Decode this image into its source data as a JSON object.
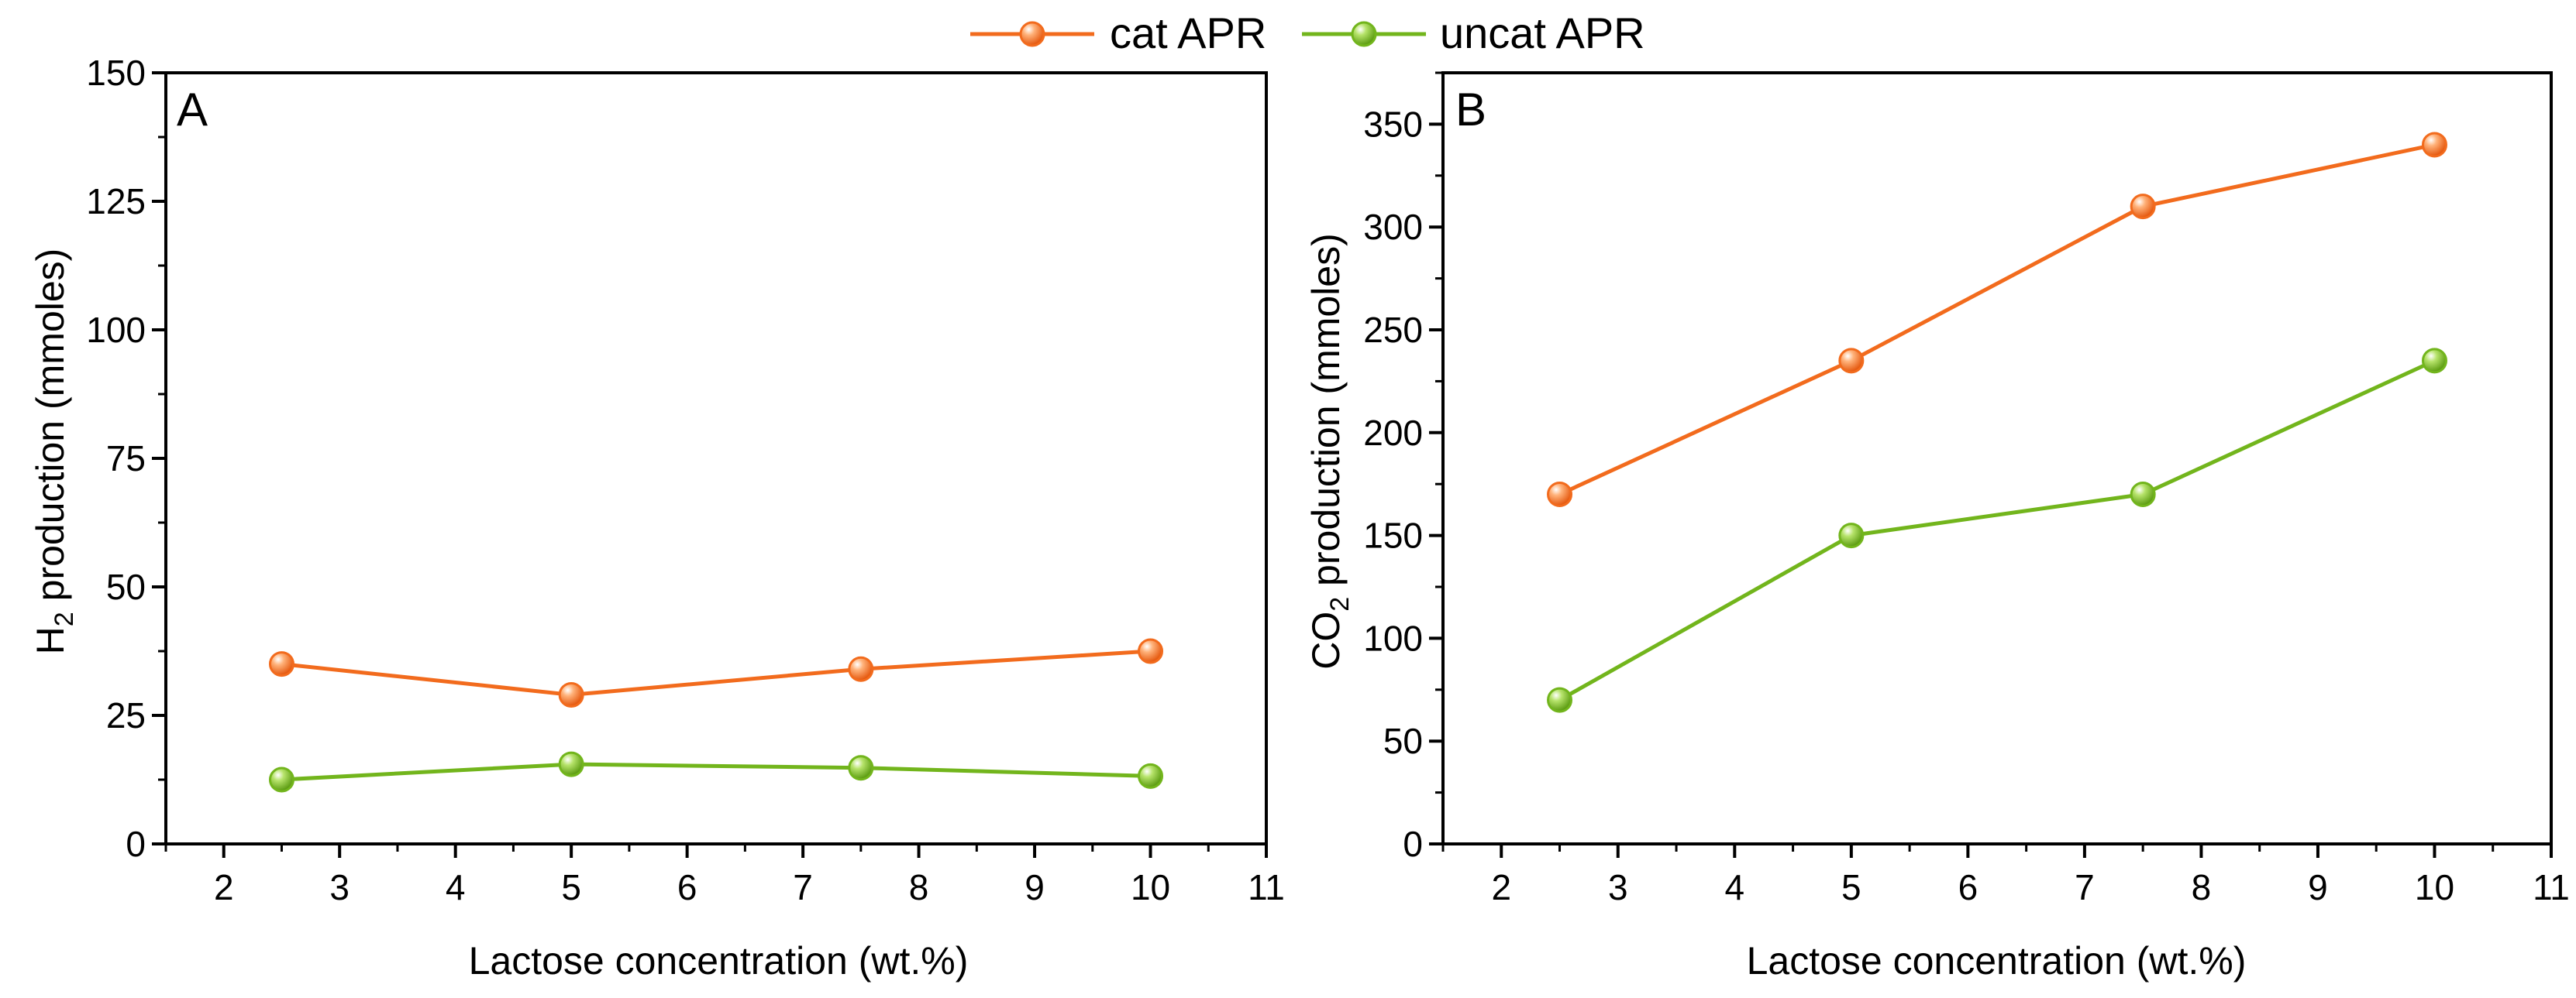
{
  "legend": {
    "items": [
      {
        "label": "cat APR",
        "color": "#f26b1d"
      },
      {
        "label": "uncat APR",
        "color": "#72b51c"
      }
    ]
  },
  "chart_data": [
    {
      "type": "line",
      "panel_label": "A",
      "xlabel": "Lactose concentration (wt.%)",
      "ylabel_main": "H",
      "ylabel_sub": "2",
      "ylabel_rest": " production (mmoles)",
      "xlim": [
        1.5,
        11
      ],
      "ylim": [
        0,
        150
      ],
      "xticks": [
        2,
        3,
        4,
        5,
        6,
        7,
        8,
        9,
        10,
        11
      ],
      "yticks": [
        0,
        25,
        50,
        75,
        100,
        125,
        150
      ],
      "x": [
        2.5,
        5,
        7.5,
        10
      ],
      "series": [
        {
          "name": "cat APR",
          "color": "#f26b1d",
          "values": [
            35,
            29,
            34,
            37.5
          ]
        },
        {
          "name": "uncat APR",
          "color": "#72b51c",
          "values": [
            12.5,
            15.5,
            14.8,
            13.2
          ]
        }
      ]
    },
    {
      "type": "line",
      "panel_label": "B",
      "xlabel": "Lactose concentration (wt.%)",
      "ylabel_main": "CO",
      "ylabel_sub": "2",
      "ylabel_rest": " production (mmoles)",
      "xlim": [
        1.5,
        11
      ],
      "ylim": [
        0,
        375
      ],
      "xticks": [
        2,
        3,
        4,
        5,
        6,
        7,
        8,
        9,
        10,
        11
      ],
      "yticks": [
        0,
        50,
        100,
        150,
        200,
        250,
        300,
        350
      ],
      "x": [
        2.5,
        5,
        7.5,
        10
      ],
      "series": [
        {
          "name": "cat APR",
          "color": "#f26b1d",
          "values": [
            170,
            235,
            310,
            340
          ]
        },
        {
          "name": "uncat APR",
          "color": "#72b51c",
          "values": [
            70,
            150,
            170,
            235
          ]
        }
      ]
    }
  ]
}
